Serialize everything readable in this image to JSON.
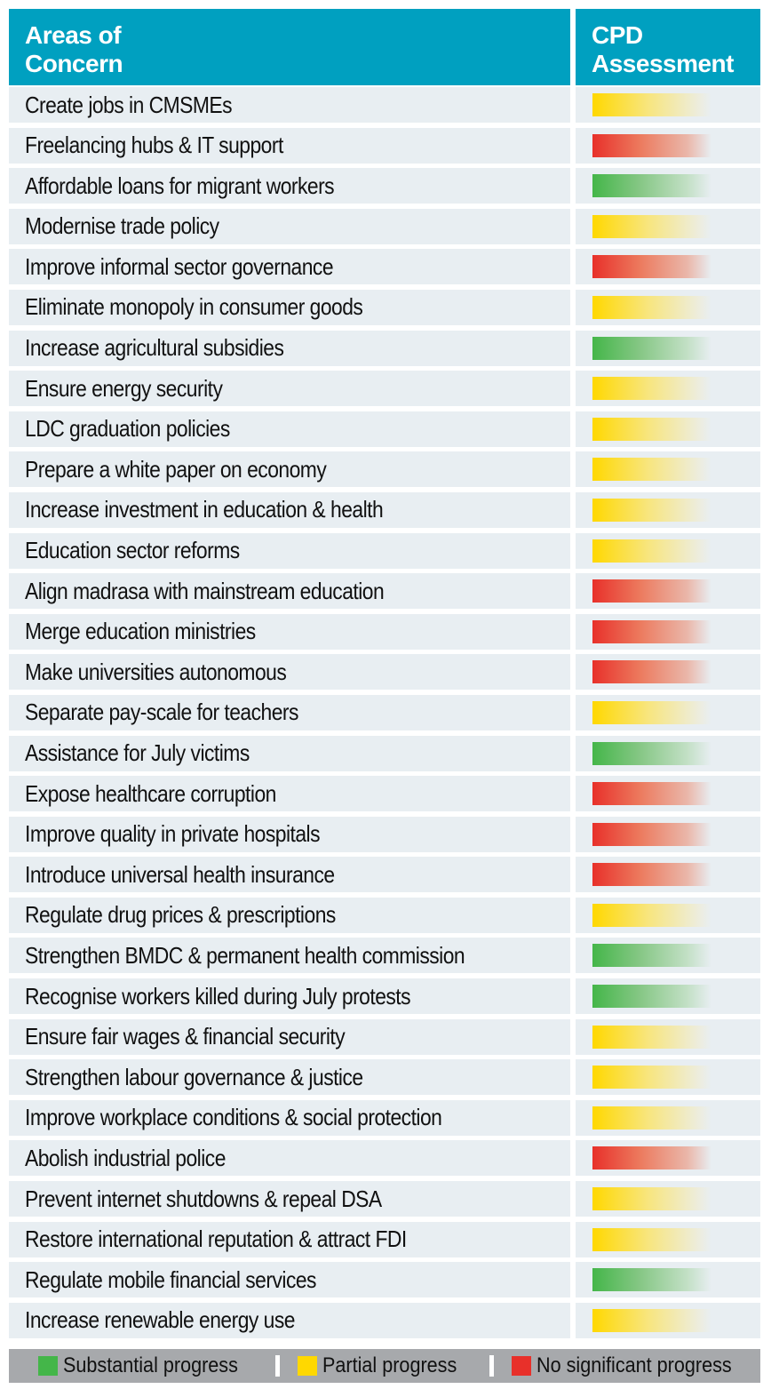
{
  "header": {
    "col1_line1": "Areas of",
    "col1_line2": "Concern",
    "col2_line1": "CPD",
    "col2_line2": "Assessment"
  },
  "colors": {
    "header_bg": "#00a0c0",
    "row_bg": "#e8eef2",
    "substantial": "#44b649",
    "partial": "#ffd800",
    "none": "#e8302a",
    "legend_bg": "#a7a9ac"
  },
  "rows": [
    {
      "area": "Create jobs in CMSMEs",
      "status": "partial"
    },
    {
      "area": "Freelancing hubs & IT support",
      "status": "none"
    },
    {
      "area": "Affordable loans for migrant workers",
      "status": "substantial"
    },
    {
      "area": "Modernise trade policy",
      "status": "partial"
    },
    {
      "area": "Improve informal sector governance",
      "status": "none"
    },
    {
      "area": "Eliminate monopoly in consumer goods",
      "status": "partial"
    },
    {
      "area": "Increase agricultural subsidies",
      "status": "substantial"
    },
    {
      "area": "Ensure energy security",
      "status": "partial"
    },
    {
      "area": "LDC graduation policies",
      "status": "partial"
    },
    {
      "area": "Prepare a white paper on economy",
      "status": "partial"
    },
    {
      "area": "Increase investment in education & health",
      "status": "partial"
    },
    {
      "area": "Education sector reforms",
      "status": "partial"
    },
    {
      "area": "Align madrasa with mainstream education",
      "status": "none"
    },
    {
      "area": "Merge education ministries",
      "status": "none"
    },
    {
      "area": "Make universities autonomous",
      "status": "none"
    },
    {
      "area": "Separate pay-scale for teachers",
      "status": "partial"
    },
    {
      "area": "Assistance for July victims",
      "status": "substantial"
    },
    {
      "area": "Expose healthcare corruption",
      "status": "none"
    },
    {
      "area": "Improve quality in private hospitals",
      "status": "none"
    },
    {
      "area": "Introduce universal health insurance",
      "status": "none"
    },
    {
      "area": "Regulate drug prices & prescriptions",
      "status": "partial"
    },
    {
      "area": "Strengthen BMDC & permanent health commission",
      "status": "substantial"
    },
    {
      "area": "Recognise workers killed during July protests",
      "status": "substantial"
    },
    {
      "area": "Ensure fair wages & financial security",
      "status": "partial"
    },
    {
      "area": "Strengthen labour governance & justice",
      "status": "partial"
    },
    {
      "area": "Improve workplace conditions & social protection",
      "status": "partial"
    },
    {
      "area": "Abolish industrial police",
      "status": "none"
    },
    {
      "area": "Prevent internet shutdowns & repeal DSA",
      "status": "partial"
    },
    {
      "area": "Restore international reputation & attract FDI",
      "status": "partial"
    },
    {
      "area": "Regulate mobile financial services",
      "status": "substantial"
    },
    {
      "area": "Increase renewable energy use",
      "status": "partial"
    }
  ],
  "legend": [
    {
      "key": "substantial",
      "label": "Substantial progress"
    },
    {
      "key": "partial",
      "label": "Partial progress"
    },
    {
      "key": "none",
      "label": "No significant progress"
    }
  ]
}
